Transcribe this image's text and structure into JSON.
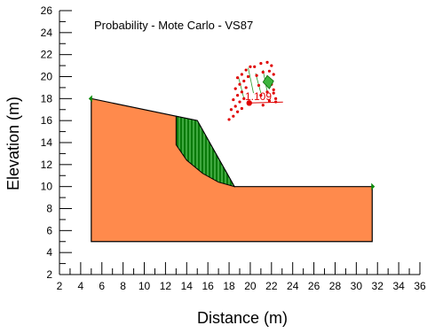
{
  "chart_data": {
    "type": "scatter",
    "title": "Probability - Mote Carlo - VS87",
    "xlabel": "Distance (m)",
    "ylabel": "Elevation (m)",
    "xlim": [
      2,
      36
    ],
    "ylim": [
      2,
      26
    ],
    "xticks": [
      "2",
      "4",
      "6",
      "8",
      "10",
      "12",
      "14",
      "16",
      "18",
      "20",
      "22",
      "24",
      "26",
      "28",
      "30",
      "32",
      "34",
      "36"
    ],
    "yticks": [
      "2",
      "4",
      "6",
      "8",
      "10",
      "12",
      "14",
      "16",
      "18",
      "20",
      "22",
      "24",
      "26"
    ],
    "grid": false,
    "slope_profile": [
      [
        5,
        5
      ],
      [
        5,
        18
      ],
      [
        15,
        16
      ],
      [
        18.5,
        10
      ],
      [
        31.5,
        10
      ],
      [
        31.5,
        5
      ]
    ],
    "slip_surface": [
      [
        13,
        16.4
      ],
      [
        13,
        13.8
      ],
      [
        14,
        12.4
      ],
      [
        15.5,
        11.2
      ],
      [
        17,
        10.4
      ],
      [
        18.5,
        10
      ],
      [
        15,
        16
      ]
    ],
    "factor_of_safety_label": "1.109",
    "critical_center": [
      19.9,
      17.6
    ],
    "grid_points": [
      [
        18.8,
        19.9
      ],
      [
        18.6,
        18.9
      ],
      [
        18.4,
        17.9
      ],
      [
        18.2,
        17.0
      ],
      [
        18.0,
        16.1
      ],
      [
        19.2,
        20.2
      ],
      [
        19.0,
        19.3
      ],
      [
        18.8,
        18.3
      ],
      [
        18.6,
        17.3
      ],
      [
        18.4,
        16.4
      ],
      [
        19.6,
        20.6
      ],
      [
        19.4,
        19.6
      ],
      [
        19.2,
        18.6
      ],
      [
        19.0,
        17.7
      ],
      [
        18.8,
        16.8
      ],
      [
        20.0,
        20.9
      ],
      [
        19.8,
        20.0
      ],
      [
        19.6,
        19.0
      ],
      [
        19.4,
        18.0
      ],
      [
        19.2,
        17.1
      ],
      [
        20.4,
        20.9
      ],
      [
        20.6,
        20.1
      ],
      [
        20.8,
        19.2
      ],
      [
        21.0,
        18.3
      ],
      [
        21.2,
        17.4
      ],
      [
        21.0,
        21.2
      ],
      [
        21.2,
        20.4
      ],
      [
        21.4,
        19.5
      ],
      [
        21.6,
        18.6
      ],
      [
        21.8,
        17.8
      ],
      [
        21.6,
        21.3
      ],
      [
        21.8,
        20.5
      ],
      [
        22.0,
        19.6
      ],
      [
        22.2,
        18.8
      ],
      [
        22.4,
        18.0
      ],
      [
        22.0,
        21.0
      ],
      [
        22.2,
        20.2
      ],
      [
        22.0,
        19.3
      ],
      [
        22.2,
        18.5
      ],
      [
        22.4,
        17.7
      ]
    ]
  }
}
